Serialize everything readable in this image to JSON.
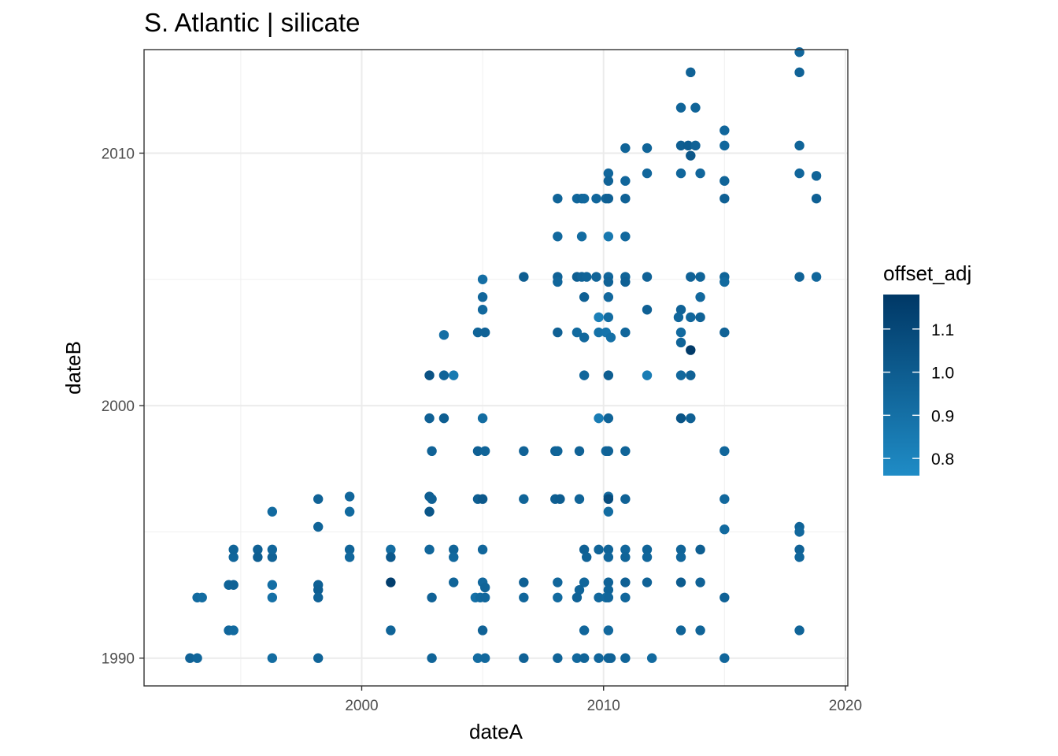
{
  "chart_data": {
    "type": "scatter",
    "title": "S. Atlantic | silicate",
    "xlabel": "dateA",
    "ylabel": "dateB",
    "xlim": [
      1991.0,
      2020.1
    ],
    "ylim": [
      1988.9,
      2014.1
    ],
    "x_ticks": [
      2000,
      2010,
      2020
    ],
    "y_ticks": [
      1990,
      2000,
      2010
    ],
    "grid": true,
    "legend": {
      "title": "offset_adj",
      "placement": "right",
      "type": "colorbar",
      "range": [
        0.76,
        1.18
      ],
      "ticks": [
        0.8,
        0.9,
        1.0,
        1.1
      ],
      "tick_labels": [
        "0.8",
        "0.9",
        "1.0",
        "1.1"
      ],
      "color_low": "#1f8cc6",
      "color_high": "#003866"
    },
    "points": [
      {
        "x": 1992.9,
        "y": 1990.0,
        "c": 0.97
      },
      {
        "x": 1993.2,
        "y": 1990.0,
        "c": 0.95
      },
      {
        "x": 1993.2,
        "y": 1992.4,
        "c": 0.93
      },
      {
        "x": 1993.4,
        "y": 1992.4,
        "c": 0.92
      },
      {
        "x": 1994.5,
        "y": 1991.1,
        "c": 0.95
      },
      {
        "x": 1994.7,
        "y": 1991.1,
        "c": 0.93
      },
      {
        "x": 1994.5,
        "y": 1992.9,
        "c": 0.96
      },
      {
        "x": 1994.7,
        "y": 1992.9,
        "c": 0.97
      },
      {
        "x": 1994.7,
        "y": 1994.0,
        "c": 0.95
      },
      {
        "x": 1994.7,
        "y": 1994.3,
        "c": 0.96
      },
      {
        "x": 1995.7,
        "y": 1994.3,
        "c": 0.98
      },
      {
        "x": 1995.7,
        "y": 1994.0,
        "c": 0.99
      },
      {
        "x": 1996.3,
        "y": 1994.0,
        "c": 0.97
      },
      {
        "x": 1996.3,
        "y": 1994.3,
        "c": 0.95
      },
      {
        "x": 1996.3,
        "y": 1995.8,
        "c": 0.93
      },
      {
        "x": 1996.3,
        "y": 1992.9,
        "c": 0.91
      },
      {
        "x": 1996.3,
        "y": 1992.4,
        "c": 0.9
      },
      {
        "x": 1996.3,
        "y": 1990.0,
        "c": 0.92
      },
      {
        "x": 1998.2,
        "y": 1996.3,
        "c": 0.97
      },
      {
        "x": 1998.2,
        "y": 1995.2,
        "c": 0.96
      },
      {
        "x": 1998.2,
        "y": 1992.9,
        "c": 0.98
      },
      {
        "x": 1998.2,
        "y": 1992.7,
        "c": 0.99
      },
      {
        "x": 1998.2,
        "y": 1992.4,
        "c": 0.97
      },
      {
        "x": 1998.2,
        "y": 1990.0,
        "c": 0.96
      },
      {
        "x": 1999.5,
        "y": 1996.4,
        "c": 0.95
      },
      {
        "x": 1999.5,
        "y": 1995.8,
        "c": 0.93
      },
      {
        "x": 1999.5,
        "y": 1994.3,
        "c": 0.96
      },
      {
        "x": 1999.5,
        "y": 1994.0,
        "c": 0.94
      },
      {
        "x": 2001.2,
        "y": 1994.3,
        "c": 0.92
      },
      {
        "x": 2001.2,
        "y": 1994.0,
        "c": 1.02
      },
      {
        "x": 2001.2,
        "y": 1993.0,
        "c": 1.15
      },
      {
        "x": 2001.2,
        "y": 1991.1,
        "c": 0.96
      },
      {
        "x": 2002.8,
        "y": 2001.2,
        "c": 1.05
      },
      {
        "x": 2002.8,
        "y": 1999.5,
        "c": 0.98
      },
      {
        "x": 2002.9,
        "y": 1998.2,
        "c": 0.97
      },
      {
        "x": 2002.8,
        "y": 1996.4,
        "c": 0.99
      },
      {
        "x": 2002.9,
        "y": 1996.3,
        "c": 0.98
      },
      {
        "x": 2002.8,
        "y": 1995.8,
        "c": 1.03
      },
      {
        "x": 2002.8,
        "y": 1994.3,
        "c": 0.95
      },
      {
        "x": 2002.9,
        "y": 1992.4,
        "c": 0.97
      },
      {
        "x": 2002.9,
        "y": 1990.0,
        "c": 0.96
      },
      {
        "x": 2003.4,
        "y": 2002.8,
        "c": 0.91
      },
      {
        "x": 2003.4,
        "y": 2001.2,
        "c": 0.96
      },
      {
        "x": 2003.8,
        "y": 2001.2,
        "c": 0.85
      },
      {
        "x": 2003.4,
        "y": 1999.5,
        "c": 0.99
      },
      {
        "x": 2003.8,
        "y": 1994.3,
        "c": 0.96
      },
      {
        "x": 2003.8,
        "y": 1994.0,
        "c": 0.94
      },
      {
        "x": 2003.8,
        "y": 1993.0,
        "c": 0.96
      },
      {
        "x": 2005.0,
        "y": 2005.0,
        "c": 0.91
      },
      {
        "x": 2005.0,
        "y": 2004.3,
        "c": 0.95
      },
      {
        "x": 2005.0,
        "y": 2003.8,
        "c": 0.94
      },
      {
        "x": 2004.8,
        "y": 2002.9,
        "c": 0.96
      },
      {
        "x": 2005.1,
        "y": 2002.9,
        "c": 0.97
      },
      {
        "x": 2005.0,
        "y": 1999.5,
        "c": 0.92
      },
      {
        "x": 2004.8,
        "y": 1998.2,
        "c": 0.98
      },
      {
        "x": 2005.1,
        "y": 1998.2,
        "c": 0.96
      },
      {
        "x": 2004.8,
        "y": 1996.3,
        "c": 0.99
      },
      {
        "x": 2005.0,
        "y": 1996.3,
        "c": 1.02
      },
      {
        "x": 2005.0,
        "y": 1994.3,
        "c": 0.95
      },
      {
        "x": 2005.0,
        "y": 1993.0,
        "c": 0.94
      },
      {
        "x": 2005.1,
        "y": 1992.8,
        "c": 0.96
      },
      {
        "x": 2004.7,
        "y": 1992.4,
        "c": 0.9
      },
      {
        "x": 2004.9,
        "y": 1992.4,
        "c": 0.93
      },
      {
        "x": 2005.1,
        "y": 1992.4,
        "c": 0.95
      },
      {
        "x": 2005.0,
        "y": 1991.1,
        "c": 0.97
      },
      {
        "x": 2004.8,
        "y": 1990.0,
        "c": 0.92
      },
      {
        "x": 2005.1,
        "y": 1990.0,
        "c": 0.94
      },
      {
        "x": 2006.7,
        "y": 2005.1,
        "c": 0.99
      },
      {
        "x": 2006.7,
        "y": 1998.2,
        "c": 0.97
      },
      {
        "x": 2006.7,
        "y": 1996.3,
        "c": 0.96
      },
      {
        "x": 2006.7,
        "y": 1993.0,
        "c": 0.98
      },
      {
        "x": 2006.7,
        "y": 1992.4,
        "c": 0.95
      },
      {
        "x": 2006.7,
        "y": 1990.0,
        "c": 0.97
      },
      {
        "x": 2008.1,
        "y": 2008.2,
        "c": 0.96
      },
      {
        "x": 2008.1,
        "y": 2006.7,
        "c": 0.94
      },
      {
        "x": 2008.1,
        "y": 2005.1,
        "c": 0.97
      },
      {
        "x": 2008.1,
        "y": 2004.9,
        "c": 0.95
      },
      {
        "x": 2008.1,
        "y": 2002.9,
        "c": 0.98
      },
      {
        "x": 2008.0,
        "y": 1998.2,
        "c": 0.97
      },
      {
        "x": 2008.1,
        "y": 1998.2,
        "c": 0.96
      },
      {
        "x": 2008.0,
        "y": 1996.3,
        "c": 0.99
      },
      {
        "x": 2008.2,
        "y": 1996.3,
        "c": 1.0
      },
      {
        "x": 2008.1,
        "y": 1993.0,
        "c": 0.95
      },
      {
        "x": 2008.1,
        "y": 1992.4,
        "c": 0.93
      },
      {
        "x": 2008.1,
        "y": 1990.0,
        "c": 0.96
      },
      {
        "x": 2008.9,
        "y": 2008.2,
        "c": 0.95
      },
      {
        "x": 2009.1,
        "y": 2008.2,
        "c": 0.96
      },
      {
        "x": 2009.2,
        "y": 2008.2,
        "c": 0.94
      },
      {
        "x": 2009.1,
        "y": 2006.7,
        "c": 0.92
      },
      {
        "x": 2008.9,
        "y": 2005.1,
        "c": 0.99
      },
      {
        "x": 2009.1,
        "y": 2005.1,
        "c": 0.97
      },
      {
        "x": 2009.3,
        "y": 2005.1,
        "c": 0.96
      },
      {
        "x": 2009.2,
        "y": 2004.3,
        "c": 0.98
      },
      {
        "x": 2008.9,
        "y": 2002.9,
        "c": 0.93
      },
      {
        "x": 2009.2,
        "y": 2002.7,
        "c": 0.94
      },
      {
        "x": 2009.2,
        "y": 2001.2,
        "c": 0.95
      },
      {
        "x": 2009.0,
        "y": 1998.2,
        "c": 0.97
      },
      {
        "x": 2009.0,
        "y": 1996.3,
        "c": 0.96
      },
      {
        "x": 2009.2,
        "y": 1994.3,
        "c": 0.98
      },
      {
        "x": 2009.3,
        "y": 1994.0,
        "c": 0.97
      },
      {
        "x": 2009.2,
        "y": 1993.0,
        "c": 0.95
      },
      {
        "x": 2009.0,
        "y": 1992.7,
        "c": 0.96
      },
      {
        "x": 2008.9,
        "y": 1992.4,
        "c": 0.97
      },
      {
        "x": 2009.2,
        "y": 1991.1,
        "c": 0.95
      },
      {
        "x": 2008.9,
        "y": 1990.0,
        "c": 0.94
      },
      {
        "x": 2009.2,
        "y": 1990.0,
        "c": 0.96
      },
      {
        "x": 2009.7,
        "y": 2008.2,
        "c": 0.95
      },
      {
        "x": 2009.7,
        "y": 2005.1,
        "c": 0.96
      },
      {
        "x": 2009.8,
        "y": 2003.5,
        "c": 0.82
      },
      {
        "x": 2009.8,
        "y": 2002.9,
        "c": 0.89
      },
      {
        "x": 2009.8,
        "y": 1999.5,
        "c": 0.84
      },
      {
        "x": 2009.8,
        "y": 1994.3,
        "c": 0.96
      },
      {
        "x": 2009.8,
        "y": 1992.4,
        "c": 0.94
      },
      {
        "x": 2009.8,
        "y": 1990.0,
        "c": 0.95
      },
      {
        "x": 2010.2,
        "y": 2009.2,
        "c": 0.95
      },
      {
        "x": 2010.2,
        "y": 2008.9,
        "c": 0.97
      },
      {
        "x": 2010.1,
        "y": 2008.2,
        "c": 0.96
      },
      {
        "x": 2010.2,
        "y": 2008.2,
        "c": 0.98
      },
      {
        "x": 2010.2,
        "y": 2006.7,
        "c": 0.86
      },
      {
        "x": 2010.2,
        "y": 2005.1,
        "c": 0.95
      },
      {
        "x": 2010.2,
        "y": 2004.9,
        "c": 0.97
      },
      {
        "x": 2010.2,
        "y": 2004.3,
        "c": 0.94
      },
      {
        "x": 2010.2,
        "y": 2003.5,
        "c": 0.92
      },
      {
        "x": 2010.1,
        "y": 2002.9,
        "c": 0.88
      },
      {
        "x": 2010.3,
        "y": 2002.7,
        "c": 0.9
      },
      {
        "x": 2010.2,
        "y": 2001.2,
        "c": 0.99
      },
      {
        "x": 2010.2,
        "y": 1999.5,
        "c": 0.96
      },
      {
        "x": 2010.1,
        "y": 1998.2,
        "c": 0.95
      },
      {
        "x": 2010.2,
        "y": 1998.2,
        "c": 0.97
      },
      {
        "x": 2010.2,
        "y": 1996.4,
        "c": 0.94
      },
      {
        "x": 2010.2,
        "y": 1996.3,
        "c": 1.08
      },
      {
        "x": 2010.2,
        "y": 1995.8,
        "c": 0.92
      },
      {
        "x": 2010.2,
        "y": 1994.3,
        "c": 0.96
      },
      {
        "x": 2010.2,
        "y": 1994.0,
        "c": 0.95
      },
      {
        "x": 2010.2,
        "y": 1993.0,
        "c": 0.97
      },
      {
        "x": 2010.2,
        "y": 1992.7,
        "c": 0.96
      },
      {
        "x": 2010.1,
        "y": 1992.4,
        "c": 0.93
      },
      {
        "x": 2010.2,
        "y": 1992.4,
        "c": 0.95
      },
      {
        "x": 2010.2,
        "y": 1991.1,
        "c": 0.94
      },
      {
        "x": 2010.2,
        "y": 1990.0,
        "c": 0.96
      },
      {
        "x": 2010.3,
        "y": 1990.0,
        "c": 0.97
      },
      {
        "x": 2010.9,
        "y": 2010.2,
        "c": 0.96
      },
      {
        "x": 2010.9,
        "y": 2008.9,
        "c": 0.95
      },
      {
        "x": 2010.9,
        "y": 2008.2,
        "c": 0.97
      },
      {
        "x": 2010.9,
        "y": 2006.7,
        "c": 0.94
      },
      {
        "x": 2010.9,
        "y": 2005.1,
        "c": 0.96
      },
      {
        "x": 2010.9,
        "y": 2004.9,
        "c": 0.98
      },
      {
        "x": 2010.9,
        "y": 2002.9,
        "c": 0.95
      },
      {
        "x": 2010.9,
        "y": 1998.2,
        "c": 0.96
      },
      {
        "x": 2010.9,
        "y": 1996.3,
        "c": 0.97
      },
      {
        "x": 2010.9,
        "y": 1994.3,
        "c": 0.95
      },
      {
        "x": 2010.9,
        "y": 1994.0,
        "c": 0.96
      },
      {
        "x": 2010.9,
        "y": 1993.0,
        "c": 0.98
      },
      {
        "x": 2010.9,
        "y": 1992.4,
        "c": 0.95
      },
      {
        "x": 2010.9,
        "y": 1990.0,
        "c": 0.96
      },
      {
        "x": 2011.8,
        "y": 2010.2,
        "c": 0.96
      },
      {
        "x": 2011.8,
        "y": 2009.2,
        "c": 0.95
      },
      {
        "x": 2011.8,
        "y": 2005.1,
        "c": 0.97
      },
      {
        "x": 2011.8,
        "y": 2003.8,
        "c": 0.98
      },
      {
        "x": 2011.8,
        "y": 2001.2,
        "c": 0.84
      },
      {
        "x": 2011.8,
        "y": 1994.3,
        "c": 0.96
      },
      {
        "x": 2011.8,
        "y": 1994.0,
        "c": 0.95
      },
      {
        "x": 2011.8,
        "y": 1993.0,
        "c": 0.97
      },
      {
        "x": 2012.0,
        "y": 1990.0,
        "c": 0.93
      },
      {
        "x": 2013.2,
        "y": 2011.8,
        "c": 0.96
      },
      {
        "x": 2013.2,
        "y": 2010.3,
        "c": 0.99
      },
      {
        "x": 2013.2,
        "y": 2009.2,
        "c": 0.95
      },
      {
        "x": 2013.2,
        "y": 2003.8,
        "c": 0.97
      },
      {
        "x": 2013.1,
        "y": 2003.5,
        "c": 0.95
      },
      {
        "x": 2013.2,
        "y": 2002.9,
        "c": 0.93
      },
      {
        "x": 2013.2,
        "y": 2002.5,
        "c": 0.96
      },
      {
        "x": 2013.2,
        "y": 2001.2,
        "c": 0.94
      },
      {
        "x": 2013.2,
        "y": 1999.5,
        "c": 1.04
      },
      {
        "x": 2013.2,
        "y": 1994.3,
        "c": 0.96
      },
      {
        "x": 2013.2,
        "y": 1994.0,
        "c": 0.95
      },
      {
        "x": 2013.2,
        "y": 1993.0,
        "c": 1.0
      },
      {
        "x": 2013.2,
        "y": 1991.1,
        "c": 0.96
      },
      {
        "x": 2013.6,
        "y": 2013.2,
        "c": 0.97
      },
      {
        "x": 2013.5,
        "y": 2010.3,
        "c": 1.0
      },
      {
        "x": 2013.6,
        "y": 2009.9,
        "c": 1.03
      },
      {
        "x": 2013.6,
        "y": 2005.1,
        "c": 0.97
      },
      {
        "x": 2013.6,
        "y": 2003.5,
        "c": 0.95
      },
      {
        "x": 2013.6,
        "y": 2002.2,
        "c": 1.17
      },
      {
        "x": 2013.6,
        "y": 2001.2,
        "c": 0.97
      },
      {
        "x": 2013.6,
        "y": 1999.5,
        "c": 0.98
      },
      {
        "x": 2013.8,
        "y": 2011.8,
        "c": 0.96
      },
      {
        "x": 2013.8,
        "y": 2010.3,
        "c": 0.97
      },
      {
        "x": 2014.0,
        "y": 2009.2,
        "c": 0.95
      },
      {
        "x": 2014.0,
        "y": 2005.1,
        "c": 0.96
      },
      {
        "x": 2014.0,
        "y": 2004.3,
        "c": 0.94
      },
      {
        "x": 2014.0,
        "y": 2003.5,
        "c": 0.97
      },
      {
        "x": 2014.0,
        "y": 1994.3,
        "c": 0.99
      },
      {
        "x": 2014.0,
        "y": 1993.0,
        "c": 0.97
      },
      {
        "x": 2014.0,
        "y": 1991.1,
        "c": 0.96
      },
      {
        "x": 2015.0,
        "y": 2010.9,
        "c": 0.95
      },
      {
        "x": 2015.0,
        "y": 2010.3,
        "c": 0.94
      },
      {
        "x": 2015.0,
        "y": 2008.9,
        "c": 0.96
      },
      {
        "x": 2015.0,
        "y": 2008.2,
        "c": 0.98
      },
      {
        "x": 2015.0,
        "y": 2005.1,
        "c": 0.96
      },
      {
        "x": 2015.0,
        "y": 2004.9,
        "c": 0.93
      },
      {
        "x": 2015.0,
        "y": 2002.9,
        "c": 0.97
      },
      {
        "x": 2015.0,
        "y": 1998.2,
        "c": 0.95
      },
      {
        "x": 2015.0,
        "y": 1996.3,
        "c": 0.94
      },
      {
        "x": 2015.0,
        "y": 1995.1,
        "c": 0.93
      },
      {
        "x": 2015.0,
        "y": 1992.4,
        "c": 0.97
      },
      {
        "x": 2015.0,
        "y": 1990.0,
        "c": 0.95
      },
      {
        "x": 2018.1,
        "y": 2014.0,
        "c": 0.95
      },
      {
        "x": 2018.1,
        "y": 2013.2,
        "c": 0.97
      },
      {
        "x": 2018.1,
        "y": 2010.3,
        "c": 0.96
      },
      {
        "x": 2018.1,
        "y": 2009.2,
        "c": 0.95
      },
      {
        "x": 2018.1,
        "y": 2005.1,
        "c": 0.97
      },
      {
        "x": 2018.1,
        "y": 1995.2,
        "c": 0.96
      },
      {
        "x": 2018.1,
        "y": 1995.0,
        "c": 0.94
      },
      {
        "x": 2018.1,
        "y": 1994.3,
        "c": 0.97
      },
      {
        "x": 2018.1,
        "y": 1994.0,
        "c": 0.95
      },
      {
        "x": 2018.1,
        "y": 1991.1,
        "c": 0.96
      },
      {
        "x": 2018.8,
        "y": 2009.1,
        "c": 0.96
      },
      {
        "x": 2018.8,
        "y": 2008.2,
        "c": 0.98
      },
      {
        "x": 2018.8,
        "y": 2005.1,
        "c": 0.95
      }
    ]
  }
}
